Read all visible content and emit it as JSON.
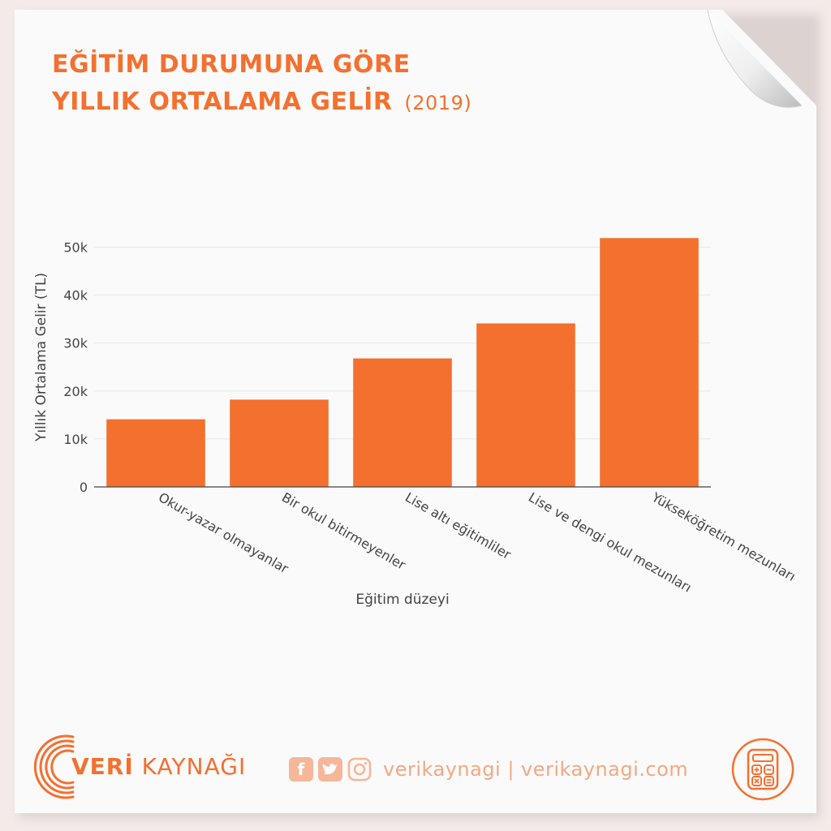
{
  "title": {
    "line1": "EĞİTİM DURUMUNA GÖRE",
    "line2": "YILLIK ORTALAMA GELİR",
    "year": "(2019)"
  },
  "chart_data": {
    "type": "bar",
    "categories": [
      "Okur-yazar olmayanlar",
      "Bir okul bitirmeyenler",
      "Lise altı eğitimliler",
      "Lise ve dengi okul mezunları",
      "Yükseköğretim mezunları"
    ],
    "values": [
      14100,
      18200,
      26800,
      34100,
      51900
    ],
    "xlabel": "Eğitim düzeyi",
    "ylabel": "Yıllık Ortalama Gelir (TL)",
    "ylim": [
      0,
      55000
    ],
    "yticks": [
      0,
      10000,
      20000,
      30000,
      40000,
      50000
    ],
    "ytick_labels": [
      "0",
      "10k",
      "20k",
      "30k",
      "40k",
      "50k"
    ],
    "grid": true,
    "bar_color": "#f4702f"
  },
  "footer": {
    "logo_bold": "VERİ",
    "logo_rest": " KAYNAĞI",
    "social": {
      "facebook_icon": "facebook-icon",
      "twitter_icon": "twitter-icon",
      "instagram_icon": "instagram-icon",
      "text": "verikaynagi | verikaynagi.com"
    },
    "badge_icon": "calculator-icon"
  },
  "colors": {
    "accent": "#f4702f",
    "background": "#fafafa",
    "outer": "#f3ebe8"
  }
}
